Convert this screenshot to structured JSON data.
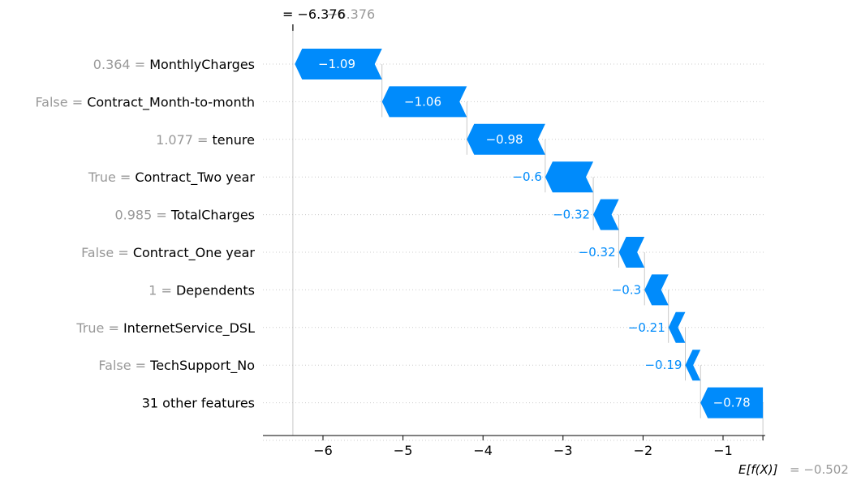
{
  "chart_data": {
    "type": "waterfall",
    "base_value": -0.502,
    "base_label": "E[f(X)]",
    "base_value_text": "= −0.502",
    "fx_value": -6.376,
    "fx_value_text": "= −6.376",
    "fx_ghost_text": "−6.376",
    "xlim": [
      -6.75,
      -0.52
    ],
    "xticks": [
      -6,
      -5,
      -4,
      -3,
      -2,
      -1
    ],
    "xtick_labels": [
      "−6",
      "−5",
      "−4",
      "−3",
      "−2",
      "−1"
    ],
    "bar_color": "#008bfb",
    "features": [
      {
        "value": "0.364",
        "name": "MonthlyCharges",
        "shap": -1.09,
        "label": "−1.09"
      },
      {
        "value": "False",
        "name": "Contract_Month-to-month",
        "shap": -1.06,
        "label": "−1.06"
      },
      {
        "value": "1.077",
        "name": "tenure",
        "shap": -0.98,
        "label": "−0.98"
      },
      {
        "value": "True",
        "name": "Contract_Two year",
        "shap": -0.6,
        "label": "−0.6"
      },
      {
        "value": "0.985",
        "name": "TotalCharges",
        "shap": -0.32,
        "label": "−0.32"
      },
      {
        "value": "False",
        "name": "Contract_One year",
        "shap": -0.32,
        "label": "−0.32"
      },
      {
        "value": "1",
        "name": "Dependents",
        "shap": -0.3,
        "label": "−0.3"
      },
      {
        "value": "True",
        "name": "InternetService_DSL",
        "shap": -0.21,
        "label": "−0.21"
      },
      {
        "value": "False",
        "name": "TechSupport_No",
        "shap": -0.19,
        "label": "−0.19"
      },
      {
        "value": "",
        "name": "31 other features",
        "shap": -0.78,
        "label": "−0.78"
      }
    ]
  }
}
